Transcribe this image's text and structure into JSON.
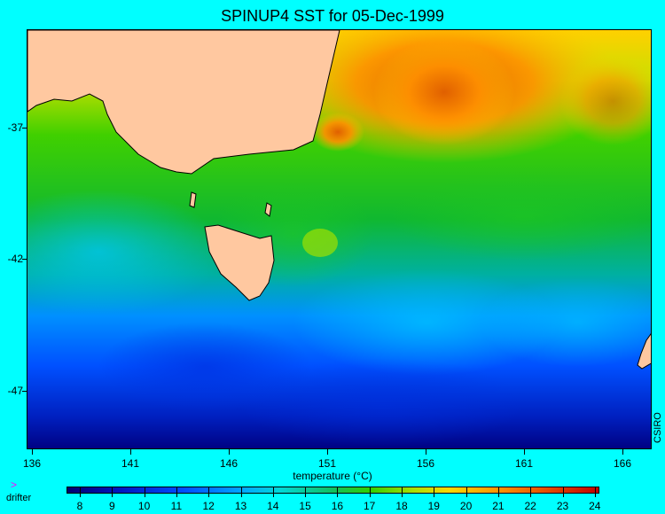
{
  "title": "SPINUP4 SST for 05-Dec-1999",
  "axes": {
    "y_ticks": [
      "-37",
      "-42",
      "-47"
    ],
    "x_ticks": [
      "136",
      "141",
      "146",
      "151",
      "156",
      "161",
      "166"
    ]
  },
  "credit": "CSIRO",
  "colorbar": {
    "title": "temperature (°C)",
    "labels": [
      "8",
      "9",
      "10",
      "11",
      "12",
      "13",
      "14",
      "15",
      "16",
      "17",
      "18",
      "19",
      "20",
      "21",
      "22",
      "23",
      "24"
    ]
  },
  "legend": {
    "arrow": ">",
    "label": "drifter"
  },
  "colors": {
    "background": "#00ffff",
    "land": "#ffc8a0",
    "coast": "#000000"
  }
}
